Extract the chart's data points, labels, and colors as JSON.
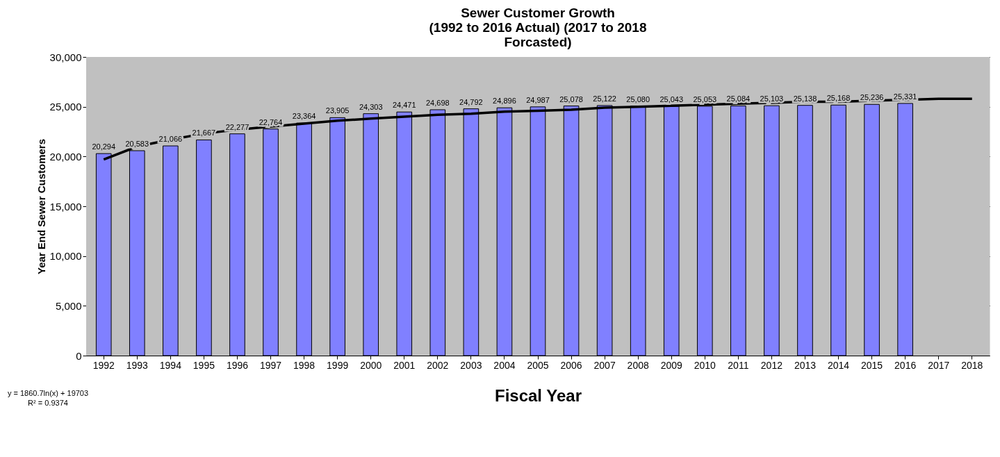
{
  "chart_data": {
    "type": "bar",
    "title": "Sewer Customer Growth\n(1992 to 2016 Actual) (2017 to 2018\nForcasted)",
    "xlabel": "Fiscal Year",
    "ylabel": "Year End Sewer Customers",
    "categories": [
      "1992",
      "1993",
      "1994",
      "1995",
      "1996",
      "1997",
      "1998",
      "1999",
      "2000",
      "2001",
      "2002",
      "2003",
      "2004",
      "2005",
      "2006",
      "2007",
      "2008",
      "2009",
      "2010",
      "2011",
      "2012",
      "2013",
      "2014",
      "2015",
      "2016",
      "2017",
      "2018"
    ],
    "series": [
      {
        "color": "#8080ff",
        "values": [
          20294,
          20583,
          21066,
          21667,
          22277,
          22764,
          23364,
          23905,
          24303,
          24471,
          24698,
          24792,
          24896,
          24987,
          25078,
          25122,
          25080,
          25043,
          25053,
          25084,
          25103,
          25138,
          25168,
          25236,
          25331,
          null,
          null
        ],
        "value_labels": [
          "20,294",
          "20,583",
          "21,066",
          "21,667",
          "22,277",
          "22,764",
          "23,364",
          "23,905",
          "24,303",
          "24,471",
          "24,698",
          "24,792",
          "24,896",
          "24,987",
          "25,078",
          "25,122",
          "25,080",
          "25,043",
          "25,053",
          "25,084",
          "25,103",
          "25,138",
          "25,168",
          "25,236",
          "25,331",
          null,
          null
        ]
      },
      {
        "type": "line",
        "color": "#000000",
        "values": [
          19700,
          21000,
          21700,
          22300,
          22700,
          23000,
          23300,
          23600,
          23800,
          24000,
          24200,
          24300,
          24500,
          24600,
          24700,
          24900,
          25000,
          25100,
          25200,
          25300,
          25400,
          25500,
          25500,
          25600,
          25700,
          25800,
          25800
        ]
      }
    ],
    "ylim": [
      0,
      30000
    ],
    "yticks": [
      0,
      {
        "value": 5000,
        "label": "5,000"
      },
      {
        "value": 10000,
        "label": "10,000"
      },
      {
        "value": 15000,
        "label": "15,000"
      },
      {
        "value": 20000,
        "label": "20,000"
      },
      {
        "value": 25000,
        "label": "25,000"
      },
      {
        "value": 30000,
        "label": "30,000"
      }
    ],
    "grid": "y",
    "marker": "none",
    "annotations": [
      "y = 1860.7ln(x) + 19703",
      "R² = 0.9374"
    ]
  }
}
